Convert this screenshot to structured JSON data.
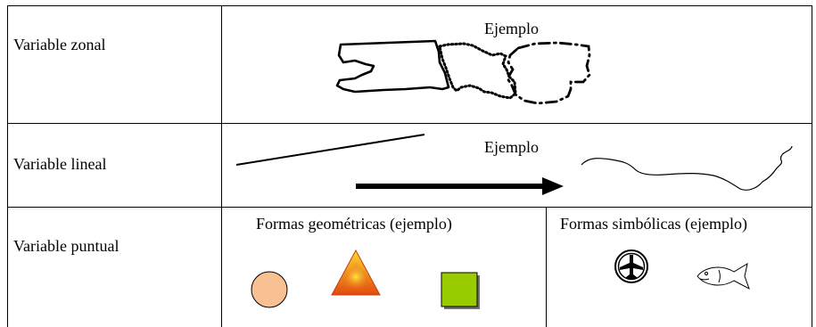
{
  "rows": [
    {
      "label": "Variable zonal",
      "example_label": "Ejemplo"
    },
    {
      "label": "Variable lineal",
      "example_label": "Ejemplo"
    },
    {
      "label": "Variable puntual",
      "geometric_caption": "Formas geométricas (ejemplo)",
      "symbolic_caption": "Formas simbólicas (ejemplo)"
    }
  ],
  "colors": {
    "circle_fill": "#f8c193",
    "triangle_top": "#ffd830",
    "triangle_bottom": "#e04a10",
    "square_fill": "#99cc00",
    "square_shadow": "#707070"
  },
  "icons": [
    "airplane-icon",
    "fish-icon"
  ]
}
